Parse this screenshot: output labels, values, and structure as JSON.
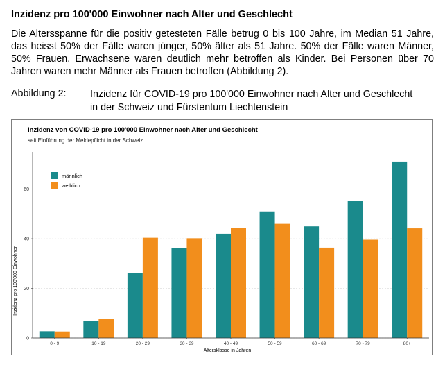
{
  "document": {
    "heading": "Inzidenz pro 100'000 Einwohner nach Alter und Geschlecht",
    "paragraph": "Die Altersspanne für die positiv getesteten Fälle betrug 0 bis 100 Jahre, im Median 51 Jahre, das heisst 50% der Fälle waren jünger, 50% älter als 51 Jahre. 50% der Fälle waren Männer, 50% Frauen. Erwachsene waren deutlich mehr betroffen als Kinder. Bei Personen über 70 Jahren waren mehr Männer als Frauen betroffen (Abbildung 2).",
    "caption_label": "Abbildung 2:",
    "caption_text": "Inzidenz für COVID-19 pro 100'000 Einwohner nach Alter und Geschlecht in der Schweiz und Fürstentum Liechtenstein"
  },
  "chart_data": {
    "type": "bar",
    "title": "Inzidenz von COVID-19 pro 100'000 Einwohner nach Alter und Geschlecht",
    "subtitle": "seit Einführung der Meldepflicht in der Schweiz",
    "xlabel": "Altersklasse in Jahren",
    "ylabel": "Inzidenz pro 100'000 Einwohner",
    "categories": [
      "0 - 9",
      "10 - 19",
      "20 - 29",
      "30 - 39",
      "40 - 49",
      "50 - 59",
      "60 - 69",
      "70 - 79",
      "80+"
    ],
    "series": [
      {
        "name": "männlich",
        "color": "#1a8a8c",
        "values": [
          2.7,
          6.8,
          26.2,
          36.2,
          42,
          51,
          45,
          55.2,
          71.1
        ]
      },
      {
        "name": "weiblich",
        "color": "#f28e1c",
        "values": [
          2.6,
          7.8,
          40.4,
          40.2,
          44.3,
          46,
          36.4,
          39.6,
          44.2
        ]
      }
    ],
    "ylim": [
      0,
      75
    ],
    "yticks": [
      0,
      20,
      40,
      60
    ],
    "grid": true,
    "legend_position": "top-left"
  }
}
